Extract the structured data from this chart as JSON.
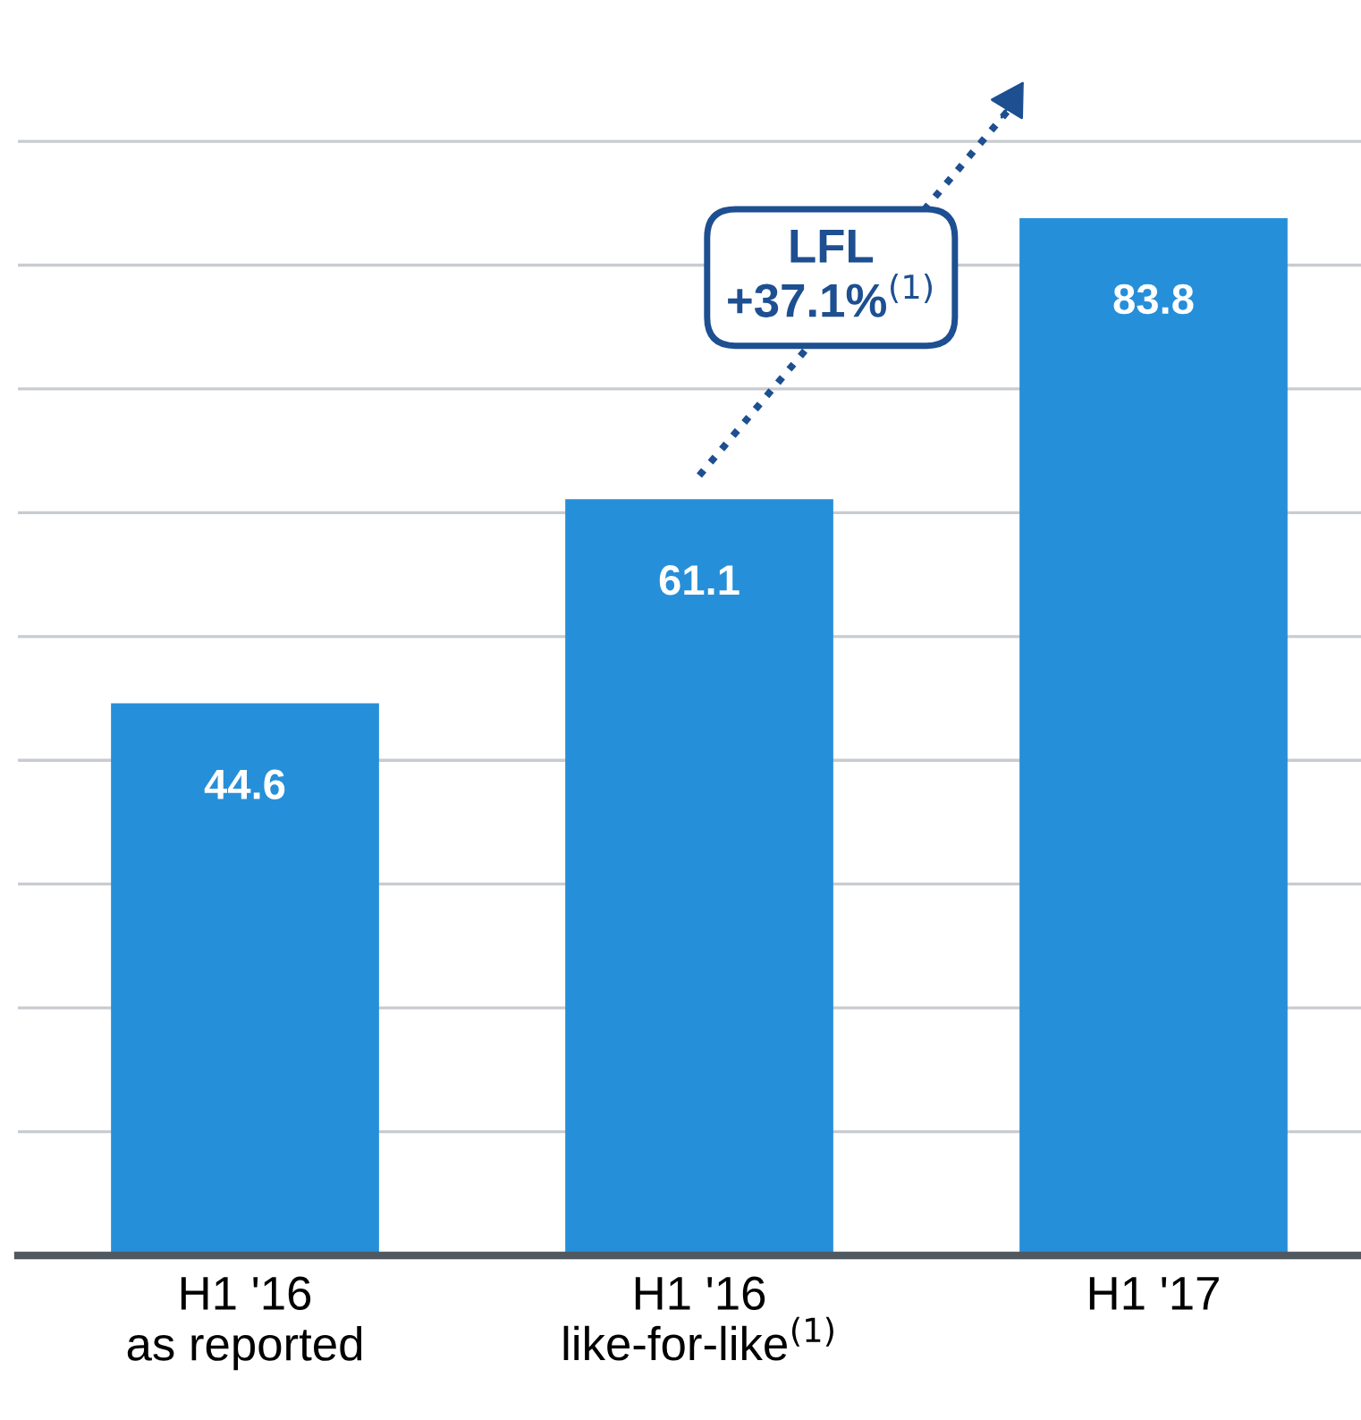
{
  "chart_data": {
    "type": "bar",
    "categories": [
      "H1 '16\nas reported",
      "H1 '16\nlike-for-like$^{(1)}$",
      "H1 '17"
    ],
    "values": [
      44.6,
      61.1,
      83.8
    ],
    "color": "#268fd9",
    "data_labels": true,
    "yticks": [
      {
        "value": 0,
        "label": null
      },
      {
        "value": 10,
        "label": null
      },
      {
        "value": 20,
        "label": null
      },
      {
        "value": 30,
        "label": null
      },
      {
        "value": 40,
        "label": null
      },
      {
        "value": 50,
        "label": null
      },
      {
        "value": 60,
        "label": null
      },
      {
        "value": 70,
        "label": null
      },
      {
        "value": 80,
        "label": null
      },
      {
        "value": 90,
        "label": null
      }
    ],
    "grid": "y",
    "tick_labels": "x",
    "annotations": [
      "LFL\n+37.1%$^{(1)}$"
    ]
  }
}
